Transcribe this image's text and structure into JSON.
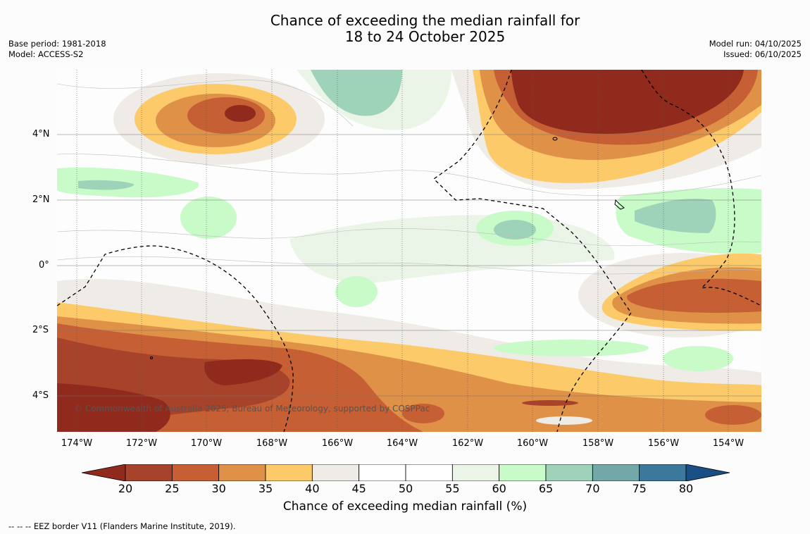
{
  "title": {
    "line1": "Chance of exceeding the median rainfall for",
    "line2": "18 to 24 October 2025"
  },
  "meta": {
    "base_period": "Base period: 1981-2018",
    "model": "Model: ACCESS-S2",
    "model_run": "Model run: 04/10/2025",
    "issued": "Issued: 06/10/2025"
  },
  "map": {
    "lat_labels": [
      "4°N",
      "2°N",
      "0°",
      "2°S",
      "4°S"
    ],
    "lon_labels": [
      "174°W",
      "172°W",
      "170°W",
      "168°W",
      "166°W",
      "164°W",
      "162°W",
      "160°W",
      "158°W",
      "156°W",
      "154°W"
    ],
    "copyright": "© Commonwealth of Australia 2025, Bureau of Meteorology, supported by COSPPac"
  },
  "colorbar": {
    "ticks": [
      "20",
      "25",
      "30",
      "35",
      "40",
      "45",
      "50",
      "55",
      "60",
      "65",
      "70",
      "75",
      "80"
    ],
    "colors": [
      "#8f2a1d",
      "#a6432a",
      "#c65f34",
      "#df9148",
      "#fdca6a",
      "#efebe6",
      "#ffffff",
      "#ffffff",
      "#eaf5e8",
      "#c8fbc8",
      "#9ed3b9",
      "#72a8a8",
      "#3c789c",
      "#1a4f86"
    ],
    "label": "Chance of exceeding median rainfall (%)"
  },
  "legend": {
    "eez": "--  --  -- EEZ border V11 (Flanders Marine Institute, 2019)."
  }
}
